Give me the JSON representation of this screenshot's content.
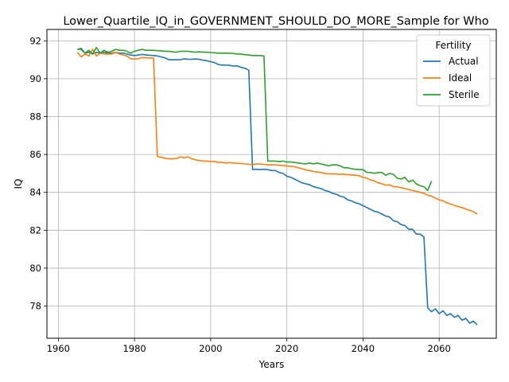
{
  "chart_data": {
    "type": "line",
    "title": "Lower_Quartile_IQ_in_GOVERNMENT_SHOULD_DO_MORE_Sample for Who",
    "xlabel": "Years",
    "ylabel": "IQ",
    "xlim": [
      1957,
      2075
    ],
    "ylim": [
      76.3,
      92.6
    ],
    "xticks": [
      1960,
      1980,
      2000,
      2020,
      2040,
      2060
    ],
    "yticks": [
      78,
      80,
      82,
      84,
      86,
      88,
      90,
      92
    ],
    "grid": true,
    "legend": {
      "title": "Fertility",
      "placement": "top-right"
    },
    "series": [
      {
        "name": "Actual",
        "color": "#1f77b4",
        "x": [
          1965,
          1966,
          1967,
          1968,
          1969,
          1970,
          1971,
          1972,
          1973,
          1974,
          1975,
          1976,
          1977,
          1978,
          1979,
          1980,
          1981,
          1982,
          1983,
          1984,
          1985,
          1986,
          1987,
          1988,
          1989,
          1990,
          1991,
          1992,
          1993,
          1994,
          1995,
          1996,
          1997,
          1998,
          1999,
          2000,
          2001,
          2002,
          2003,
          2004,
          2005,
          2006,
          2007,
          2008,
          2009,
          2010,
          2011,
          2012,
          2013,
          2014,
          2015,
          2016,
          2017,
          2018,
          2019,
          2020,
          2021,
          2022,
          2023,
          2024,
          2025,
          2026,
          2027,
          2028,
          2029,
          2030,
          2031,
          2032,
          2033,
          2034,
          2035,
          2036,
          2037,
          2038,
          2039,
          2040,
          2041,
          2042,
          2043,
          2044,
          2045,
          2046,
          2047,
          2048,
          2049,
          2050,
          2051,
          2052,
          2053,
          2054,
          2055,
          2056,
          2057,
          2058,
          2059,
          2060,
          2061,
          2062,
          2063,
          2064,
          2065,
          2066,
          2067,
          2068,
          2069,
          2070
        ],
        "y": [
          91.55,
          91.55,
          91.35,
          91.4,
          91.3,
          91.4,
          91.35,
          91.4,
          91.35,
          91.35,
          91.4,
          91.35,
          91.35,
          91.3,
          91.25,
          91.22,
          91.25,
          91.28,
          91.25,
          91.24,
          91.22,
          91.2,
          91.15,
          91.1,
          91.0,
          91.0,
          91.0,
          91.0,
          91.05,
          91.03,
          91.02,
          91.04,
          91.02,
          90.98,
          90.95,
          90.9,
          90.85,
          90.75,
          90.72,
          90.72,
          90.7,
          90.67,
          90.68,
          90.6,
          90.55,
          90.45,
          85.2,
          85.22,
          85.2,
          85.22,
          85.2,
          85.15,
          85.15,
          85.05,
          85.0,
          84.85,
          84.8,
          84.7,
          84.6,
          84.5,
          84.45,
          84.4,
          84.3,
          84.25,
          84.2,
          84.1,
          84.05,
          83.95,
          83.9,
          83.8,
          83.75,
          83.6,
          83.55,
          83.45,
          83.4,
          83.3,
          83.2,
          83.1,
          83.0,
          82.95,
          82.85,
          82.75,
          82.7,
          82.5,
          82.45,
          82.3,
          82.25,
          82.05,
          82.05,
          81.8,
          81.8,
          81.65,
          77.9,
          77.7,
          77.85,
          77.6,
          77.75,
          77.5,
          77.6,
          77.4,
          77.5,
          77.25,
          77.35,
          77.1,
          77.2,
          77.0
        ]
      },
      {
        "name": "Ideal",
        "color": "#ff7f0e",
        "x": [
          1965,
          1966,
          1967,
          1968,
          1969,
          1970,
          1971,
          1972,
          1973,
          1974,
          1975,
          1976,
          1977,
          1978,
          1979,
          1980,
          1981,
          1982,
          1983,
          1984,
          1985,
          1986,
          1987,
          1988,
          1989,
          1990,
          1991,
          1992,
          1993,
          1994,
          1995,
          1996,
          1997,
          1998,
          1999,
          2000,
          2001,
          2002,
          2003,
          2004,
          2005,
          2006,
          2007,
          2008,
          2009,
          2010,
          2011,
          2012,
          2013,
          2014,
          2015,
          2016,
          2017,
          2018,
          2019,
          2020,
          2021,
          2022,
          2023,
          2024,
          2025,
          2026,
          2027,
          2028,
          2029,
          2030,
          2031,
          2032,
          2033,
          2034,
          2035,
          2036,
          2037,
          2038,
          2039,
          2040,
          2041,
          2042,
          2043,
          2044,
          2045,
          2046,
          2047,
          2048,
          2049,
          2050,
          2051,
          2052,
          2053,
          2054,
          2055,
          2056,
          2057,
          2058,
          2059,
          2060,
          2061,
          2062,
          2063,
          2064,
          2065,
          2066,
          2067,
          2068,
          2069,
          2070
        ],
        "y": [
          91.4,
          91.15,
          91.3,
          91.2,
          91.55,
          91.2,
          91.35,
          91.3,
          91.3,
          91.3,
          91.4,
          91.3,
          91.25,
          91.2,
          91.05,
          91.05,
          91.05,
          91.12,
          91.1,
          91.1,
          91.08,
          85.9,
          85.85,
          85.8,
          85.77,
          85.77,
          85.78,
          85.88,
          85.82,
          85.88,
          85.78,
          85.72,
          85.68,
          85.65,
          85.65,
          85.63,
          85.63,
          85.58,
          85.58,
          85.55,
          85.57,
          85.55,
          85.53,
          85.52,
          85.5,
          85.48,
          85.47,
          85.5,
          85.5,
          85.48,
          85.45,
          85.45,
          85.45,
          85.43,
          85.42,
          85.4,
          85.38,
          85.35,
          85.3,
          85.25,
          85.18,
          85.15,
          85.1,
          85.07,
          85.05,
          85.0,
          84.98,
          84.97,
          84.97,
          84.95,
          84.95,
          84.93,
          84.92,
          84.9,
          84.88,
          84.8,
          84.75,
          84.65,
          84.6,
          84.5,
          84.45,
          84.38,
          84.4,
          84.3,
          84.3,
          84.25,
          84.2,
          84.15,
          84.1,
          84.05,
          84.0,
          83.95,
          83.85,
          83.8,
          83.7,
          83.6,
          83.55,
          83.45,
          83.38,
          83.32,
          83.25,
          83.2,
          83.12,
          83.05,
          82.98,
          82.85
        ]
      },
      {
        "name": "Sterile",
        "color": "#2ca02c",
        "x": [
          1965,
          1966,
          1967,
          1968,
          1969,
          1970,
          1971,
          1972,
          1973,
          1974,
          1975,
          1976,
          1977,
          1978,
          1979,
          1980,
          1981,
          1982,
          1983,
          1984,
          1985,
          1986,
          1987,
          1988,
          1989,
          1990,
          1991,
          1992,
          1993,
          1994,
          1995,
          1996,
          1997,
          1998,
          1999,
          2000,
          2001,
          2002,
          2003,
          2004,
          2005,
          2006,
          2007,
          2008,
          2009,
          2010,
          2011,
          2012,
          2013,
          2014,
          2015,
          2016,
          2017,
          2018,
          2019,
          2020,
          2021,
          2022,
          2023,
          2024,
          2025,
          2026,
          2027,
          2028,
          2029,
          2030,
          2031,
          2032,
          2033,
          2034,
          2035,
          2036,
          2037,
          2038,
          2039,
          2040,
          2041,
          2042,
          2043,
          2044,
          2045,
          2046,
          2047,
          2048,
          2049,
          2050,
          2051,
          2052,
          2053,
          2054,
          2055,
          2056,
          2057,
          2058
        ],
        "y": [
          91.55,
          91.6,
          91.35,
          91.5,
          91.3,
          91.65,
          91.35,
          91.5,
          91.4,
          91.45,
          91.55,
          91.5,
          91.5,
          91.45,
          91.35,
          91.45,
          91.5,
          91.55,
          91.5,
          91.5,
          91.5,
          91.48,
          91.47,
          91.45,
          91.45,
          91.42,
          91.4,
          91.45,
          91.45,
          91.45,
          91.42,
          91.4,
          91.42,
          91.4,
          91.4,
          91.38,
          91.37,
          91.35,
          91.35,
          91.35,
          91.35,
          91.33,
          91.3,
          91.3,
          91.27,
          91.25,
          91.22,
          91.22,
          91.22,
          91.2,
          85.65,
          85.65,
          85.65,
          85.62,
          85.65,
          85.6,
          85.6,
          85.58,
          85.55,
          85.52,
          85.5,
          85.55,
          85.5,
          85.55,
          85.5,
          85.45,
          85.4,
          85.45,
          85.45,
          85.4,
          85.3,
          85.3,
          85.25,
          85.22,
          85.2,
          85.2,
          85.05,
          85.05,
          85.0,
          85.05,
          85.05,
          84.9,
          85.0,
          84.95,
          84.75,
          84.7,
          84.8,
          84.55,
          84.65,
          84.45,
          84.35,
          84.3,
          84.1,
          84.6
        ]
      }
    ]
  }
}
